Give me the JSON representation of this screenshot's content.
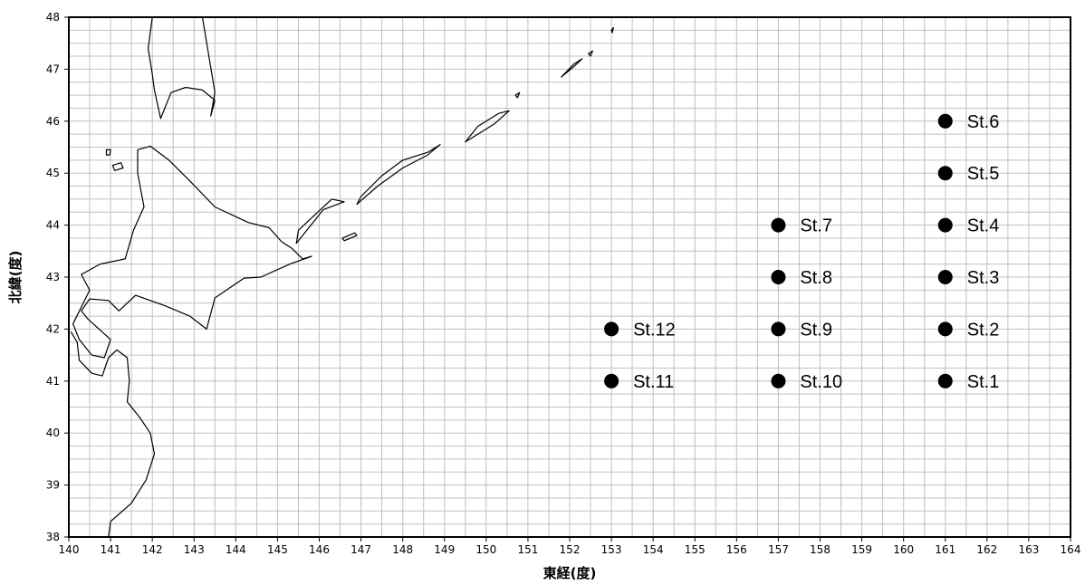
{
  "map": {
    "x_axis": {
      "title": "東経(度)",
      "min": 140,
      "max": 164,
      "major_step": 1,
      "minor_step": 0.5,
      "ticks": [
        "140",
        "141",
        "142",
        "143",
        "144",
        "145",
        "146",
        "147",
        "148",
        "149",
        "150",
        "151",
        "152",
        "153",
        "154",
        "155",
        "156",
        "157",
        "158",
        "159",
        "160",
        "161",
        "162",
        "163",
        "164"
      ]
    },
    "y_axis": {
      "title": "北緯(度)",
      "min": 38,
      "max": 48,
      "major_step": 1,
      "minor_step": 0.25,
      "ticks": [
        "38",
        "39",
        "40",
        "41",
        "42",
        "43",
        "44",
        "45",
        "46",
        "47",
        "48"
      ]
    },
    "grid": true,
    "colors": {
      "grid": "#c0c0c0",
      "frame": "#000000",
      "marker": "#000000",
      "coastline": "#000000",
      "background": "#ffffff"
    },
    "stations": [
      {
        "label": "St.1",
        "lon": 161,
        "lat": 41
      },
      {
        "label": "St.2",
        "lon": 161,
        "lat": 42
      },
      {
        "label": "St.3",
        "lon": 161,
        "lat": 43
      },
      {
        "label": "St.4",
        "lon": 161,
        "lat": 44
      },
      {
        "label": "St.5",
        "lon": 161,
        "lat": 45
      },
      {
        "label": "St.6",
        "lon": 161,
        "lat": 46
      },
      {
        "label": "St.7",
        "lon": 157,
        "lat": 44
      },
      {
        "label": "St.8",
        "lon": 157,
        "lat": 43
      },
      {
        "label": "St.9",
        "lon": 157,
        "lat": 42
      },
      {
        "label": "St.10",
        "lon": 157,
        "lat": 41
      },
      {
        "label": "St.11",
        "lon": 153,
        "lat": 41
      },
      {
        "label": "St.12",
        "lon": 153,
        "lat": 42
      }
    ],
    "coastlines": [
      {
        "name": "hokkaido",
        "closed": true,
        "points": [
          [
            141.65,
            45.45
          ],
          [
            141.95,
            45.52
          ],
          [
            142.4,
            45.25
          ],
          [
            142.9,
            44.85
          ],
          [
            143.5,
            44.35
          ],
          [
            144.3,
            44.05
          ],
          [
            144.8,
            43.95
          ],
          [
            145.1,
            43.68
          ],
          [
            145.35,
            43.55
          ],
          [
            145.6,
            43.35
          ],
          [
            145.82,
            43.4
          ],
          [
            145.3,
            43.25
          ],
          [
            144.6,
            43.0
          ],
          [
            144.2,
            42.98
          ],
          [
            143.5,
            42.6
          ],
          [
            143.3,
            42.0
          ],
          [
            142.9,
            42.25
          ],
          [
            142.3,
            42.45
          ],
          [
            141.6,
            42.65
          ],
          [
            141.2,
            42.35
          ],
          [
            140.95,
            42.55
          ],
          [
            140.5,
            42.58
          ],
          [
            140.3,
            42.35
          ],
          [
            140.45,
            42.2
          ],
          [
            141.0,
            41.8
          ],
          [
            140.85,
            41.45
          ],
          [
            140.55,
            41.5
          ],
          [
            140.25,
            41.8
          ],
          [
            140.1,
            42.1
          ],
          [
            140.5,
            42.75
          ],
          [
            140.3,
            43.05
          ],
          [
            140.75,
            43.25
          ],
          [
            141.35,
            43.35
          ],
          [
            141.55,
            43.9
          ],
          [
            141.8,
            44.35
          ],
          [
            141.65,
            45.0
          ],
          [
            141.65,
            45.45
          ]
        ]
      },
      {
        "name": "honshu-north",
        "closed": false,
        "points": [
          [
            140.05,
            41.95
          ],
          [
            140.2,
            41.75
          ],
          [
            140.25,
            41.4
          ],
          [
            140.55,
            41.15
          ],
          [
            140.8,
            41.1
          ],
          [
            140.95,
            41.45
          ],
          [
            141.15,
            41.6
          ],
          [
            141.4,
            41.45
          ],
          [
            141.45,
            41.0
          ],
          [
            141.4,
            40.6
          ],
          [
            141.7,
            40.3
          ],
          [
            141.95,
            40.0
          ],
          [
            142.05,
            39.6
          ],
          [
            141.85,
            39.1
          ],
          [
            141.5,
            38.65
          ],
          [
            141.0,
            38.3
          ],
          [
            140.95,
            38.0
          ]
        ]
      },
      {
        "name": "sakhalin-south",
        "closed": false,
        "points": [
          [
            142.0,
            48.0
          ],
          [
            141.9,
            47.4
          ],
          [
            142.0,
            46.9
          ],
          [
            142.05,
            46.6
          ],
          [
            142.2,
            46.05
          ],
          [
            142.45,
            46.55
          ],
          [
            142.8,
            46.65
          ],
          [
            143.2,
            46.6
          ],
          [
            143.5,
            46.4
          ],
          [
            143.4,
            46.1
          ],
          [
            143.5,
            46.55
          ],
          [
            143.2,
            48.0
          ]
        ]
      },
      {
        "name": "kunashiri",
        "closed": true,
        "points": [
          [
            145.45,
            43.65
          ],
          [
            145.8,
            44.0
          ],
          [
            146.1,
            44.3
          ],
          [
            146.6,
            44.45
          ],
          [
            146.3,
            44.5
          ],
          [
            145.9,
            44.2
          ],
          [
            145.5,
            43.9
          ],
          [
            145.45,
            43.65
          ]
        ]
      },
      {
        "name": "iturup",
        "closed": true,
        "points": [
          [
            146.9,
            44.4
          ],
          [
            147.4,
            44.75
          ],
          [
            148.0,
            45.1
          ],
          [
            148.6,
            45.35
          ],
          [
            148.9,
            45.55
          ],
          [
            148.6,
            45.4
          ],
          [
            148.0,
            45.25
          ],
          [
            147.5,
            44.95
          ],
          [
            147.0,
            44.55
          ],
          [
            146.9,
            44.4
          ]
        ]
      },
      {
        "name": "urup",
        "closed": true,
        "points": [
          [
            149.5,
            45.6
          ],
          [
            150.2,
            45.95
          ],
          [
            150.55,
            46.2
          ],
          [
            150.3,
            46.15
          ],
          [
            149.8,
            45.9
          ],
          [
            149.5,
            45.6
          ]
        ]
      },
      {
        "name": "shikotan",
        "closed": true,
        "points": [
          [
            146.55,
            43.75
          ],
          [
            146.85,
            43.85
          ],
          [
            146.9,
            43.8
          ],
          [
            146.6,
            43.7
          ],
          [
            146.55,
            43.75
          ]
        ]
      },
      {
        "name": "rishiri",
        "closed": true,
        "points": [
          [
            141.05,
            45.15
          ],
          [
            141.25,
            45.2
          ],
          [
            141.3,
            45.1
          ],
          [
            141.1,
            45.05
          ],
          [
            141.05,
            45.15
          ]
        ]
      },
      {
        "name": "rebun",
        "closed": true,
        "points": [
          [
            140.9,
            45.45
          ],
          [
            141.0,
            45.45
          ],
          [
            140.98,
            45.35
          ],
          [
            140.9,
            45.35
          ],
          [
            140.9,
            45.45
          ]
        ]
      },
      {
        "name": "simushir",
        "closed": true,
        "points": [
          [
            151.8,
            46.85
          ],
          [
            152.1,
            47.05
          ],
          [
            152.3,
            47.2
          ],
          [
            152.1,
            47.1
          ],
          [
            151.8,
            46.85
          ]
        ]
      },
      {
        "name": "ketoy",
        "closed": true,
        "points": [
          [
            152.45,
            47.3
          ],
          [
            152.55,
            47.35
          ],
          [
            152.5,
            47.25
          ],
          [
            152.45,
            47.3
          ]
        ]
      },
      {
        "name": "rasshua",
        "closed": true,
        "points": [
          [
            153.0,
            47.75
          ],
          [
            153.05,
            47.8
          ],
          [
            153.02,
            47.7
          ],
          [
            153.0,
            47.75
          ]
        ]
      },
      {
        "name": "broutona",
        "closed": true,
        "points": [
          [
            150.7,
            46.5
          ],
          [
            150.8,
            46.55
          ],
          [
            150.75,
            46.45
          ],
          [
            150.7,
            46.5
          ]
        ]
      }
    ]
  }
}
